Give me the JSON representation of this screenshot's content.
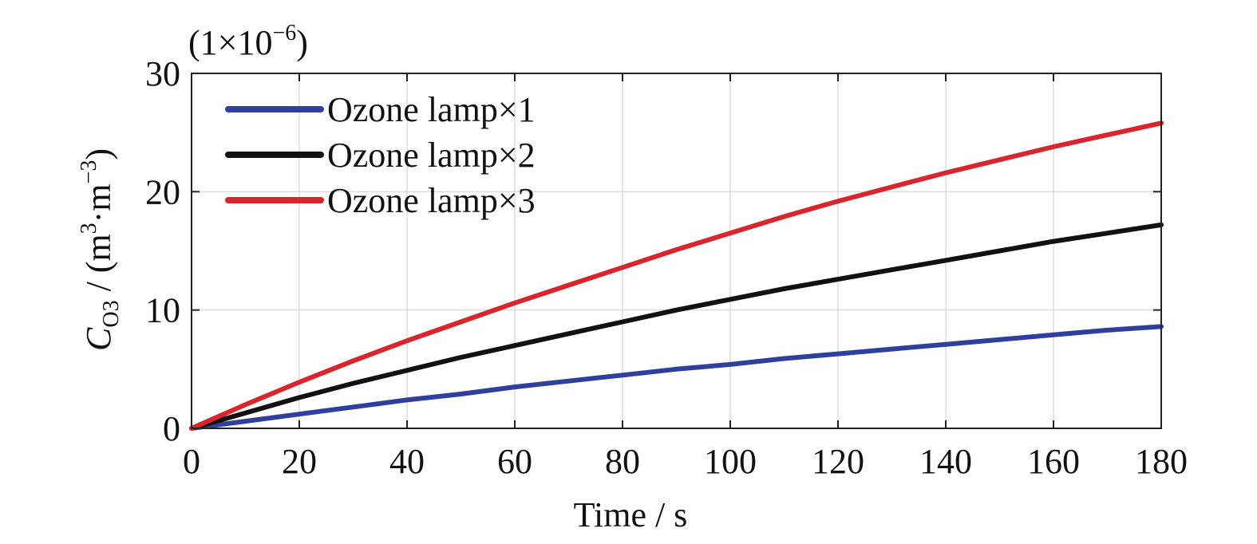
{
  "chart_data": {
    "type": "line",
    "title": "",
    "scale_note": {
      "base": "(1×10",
      "exp": "−6",
      "close": ")"
    },
    "xlabel": "Time / s",
    "ylabel": {
      "var": "C",
      "sub": "O3",
      "mid": " / (m",
      "sup1": "3",
      "dot": "·m",
      "sup2": "−3",
      "close": ")"
    },
    "xlim": [
      0,
      180
    ],
    "ylim": [
      0,
      30
    ],
    "x_ticks": [
      "0",
      "20",
      "40",
      "60",
      "80",
      "100",
      "120",
      "140",
      "160",
      "180"
    ],
    "y_ticks": [
      "0",
      "10",
      "20",
      "30"
    ],
    "grid": true,
    "legend_position": "top-left",
    "x": [
      0,
      10,
      20,
      30,
      40,
      50,
      60,
      70,
      80,
      90,
      100,
      110,
      120,
      130,
      140,
      150,
      160,
      170,
      180
    ],
    "series": [
      {
        "name": "Ozone lamp×1",
        "color": "#2e3f9c",
        "values": [
          0,
          0.6,
          1.2,
          1.8,
          2.4,
          2.9,
          3.5,
          4.0,
          4.5,
          5.0,
          5.4,
          5.9,
          6.3,
          6.7,
          7.1,
          7.5,
          7.9,
          8.3,
          8.6
        ]
      },
      {
        "name": "Ozone lamp×2",
        "color": "#111111",
        "values": [
          0,
          1.3,
          2.6,
          3.8,
          4.9,
          6.0,
          7.0,
          8.0,
          9.0,
          10.0,
          10.9,
          11.8,
          12.6,
          13.4,
          14.2,
          15.0,
          15.8,
          16.5,
          17.2
        ]
      },
      {
        "name": "Ozone lamp×3",
        "color": "#d7262e",
        "values": [
          0,
          2.0,
          3.9,
          5.7,
          7.4,
          9.0,
          10.6,
          12.1,
          13.6,
          15.1,
          16.5,
          17.9,
          19.2,
          20.4,
          21.6,
          22.7,
          23.8,
          24.8,
          25.8
        ]
      }
    ]
  }
}
